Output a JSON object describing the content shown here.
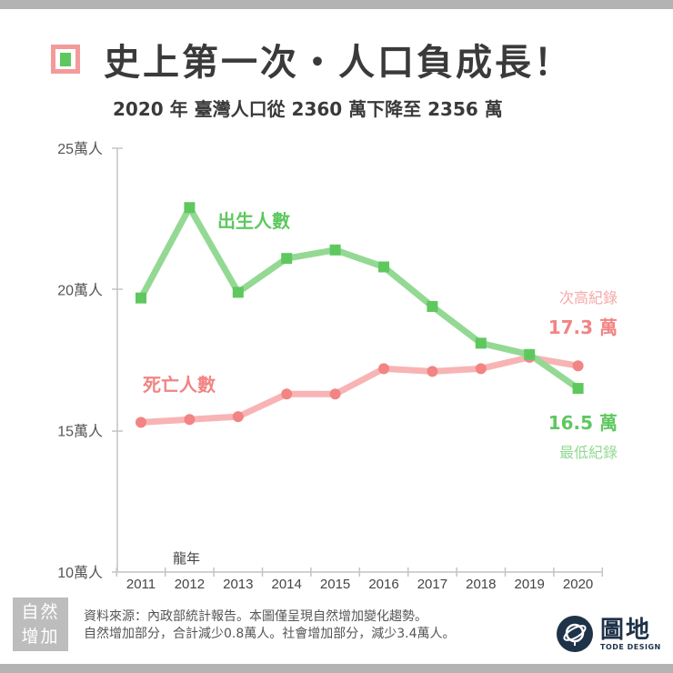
{
  "header": {
    "title": "史上第一次・人口負成長！",
    "subtitle": "2020 年 臺灣人口從 2360 萬下降至 2356 萬"
  },
  "chart_data": {
    "type": "line",
    "title": "史上第一次・人口負成長！",
    "subtitle": "2020 年 臺灣人口從 2360 萬下降至 2356 萬",
    "xlabel": "",
    "ylabel": "",
    "x": [
      "2011",
      "2012",
      "2013",
      "2014",
      "2015",
      "2016",
      "2017",
      "2018",
      "2019",
      "2020"
    ],
    "y_ticks": [
      "10萬人",
      "15萬人",
      "20萬人",
      "25萬人"
    ],
    "ylim": [
      10,
      25
    ],
    "grid": false,
    "series": [
      {
        "name": "出生人數",
        "color": "#5ec85f",
        "line_color": "#93d993",
        "marker": "square",
        "values": [
          19.7,
          22.9,
          19.9,
          21.1,
          21.4,
          20.8,
          19.4,
          18.1,
          17.7,
          16.5
        ]
      },
      {
        "name": "死亡人數",
        "color": "#f28484",
        "line_color": "#f8b4b4",
        "marker": "circle",
        "values": [
          15.3,
          15.4,
          15.5,
          16.3,
          16.3,
          17.2,
          17.1,
          17.2,
          17.6,
          17.3
        ]
      }
    ],
    "annotations": [
      {
        "text": "龍年",
        "x": "2012"
      },
      {
        "text": "次高紀錄",
        "series": "死亡人數",
        "x": "2020"
      },
      {
        "text": "17.3 萬",
        "series": "死亡人數",
        "x": "2020"
      },
      {
        "text": "16.5 萬",
        "series": "出生人數",
        "x": "2020"
      },
      {
        "text": "最低紀錄",
        "series": "出生人數",
        "x": "2020"
      }
    ]
  },
  "labels": {
    "births": "出生人數",
    "deaths": "死亡人數",
    "dragon_year": "龍年",
    "deaths_record_label": "次高紀錄",
    "deaths_record_value": "17.3 萬",
    "births_record_value": "16.5 萬",
    "births_record_label": "最低紀錄"
  },
  "footer": {
    "badge_line1": "自然",
    "badge_line2": "增加",
    "note_line1": "資料來源：內政部統計報告。本圖僅呈現自然增加變化趨勢。",
    "note_line2": "自然增加部分，合計減少0.8萬人。社會增加部分，減少3.4萬人。"
  },
  "logo": {
    "cn": "圖地",
    "en": "TODE DESIGN"
  }
}
